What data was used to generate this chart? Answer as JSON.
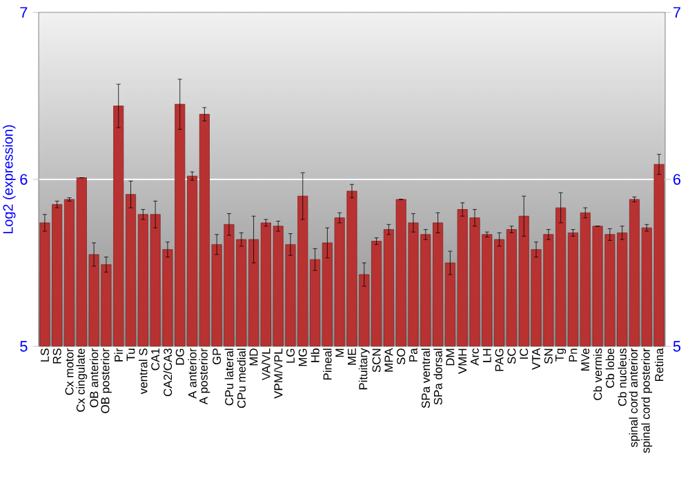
{
  "chart_data": {
    "type": "bar",
    "ylabel": "Log2 (expression)",
    "categories": [
      "LS",
      "RS",
      "Cx motor",
      "Cx cingulate",
      "OB anterior",
      "OB posterior",
      "Pir",
      "Tu",
      "ventral S",
      "CA1",
      "CA2/CA3",
      "DG",
      "A anterior",
      "A posterior",
      "GP",
      "CPu lateral",
      "CPu medial",
      "MD",
      "VA/VL",
      "VPM/VPL",
      "LG",
      "MG",
      "Hb",
      "Pineal",
      "M",
      "ME",
      "Pituitary",
      "SCN",
      "MPA",
      "SO",
      "Pa",
      "SPa ventral",
      "SPa dorsal",
      "DM",
      "VMH",
      "Arc",
      "LH",
      "PAG",
      "SC",
      "IC",
      "VTA",
      "SN",
      "Tg",
      "Pn",
      "MVe",
      "Cb vermis",
      "Cb lobe",
      "Cb nucleus",
      "spinal cord anterior",
      "spinal cord posterior",
      "Retina"
    ],
    "values": [
      5.74,
      5.85,
      5.88,
      6.01,
      5.55,
      5.49,
      6.44,
      5.91,
      5.79,
      5.79,
      5.58,
      6.45,
      6.02,
      6.39,
      5.61,
      5.73,
      5.64,
      5.64,
      5.74,
      5.72,
      5.61,
      5.9,
      5.52,
      5.62,
      5.77,
      5.93,
      5.43,
      5.63,
      5.7,
      5.88,
      5.74,
      5.67,
      5.74,
      5.5,
      5.82,
      5.77,
      5.67,
      5.64,
      5.7,
      5.78,
      5.58,
      5.67,
      5.83,
      5.68,
      5.8,
      5.72,
      5.67,
      5.68,
      5.88,
      5.71,
      6.09
    ],
    "errors": [
      0.05,
      0.02,
      0.01,
      null,
      0.07,
      0.045,
      0.13,
      0.08,
      0.03,
      0.08,
      0.045,
      0.15,
      0.025,
      0.04,
      0.06,
      0.065,
      0.04,
      0.14,
      0.02,
      0.03,
      0.065,
      0.14,
      0.065,
      0.09,
      0.03,
      0.04,
      0.07,
      0.02,
      0.03,
      null,
      0.055,
      0.03,
      0.06,
      0.07,
      0.04,
      0.05,
      0.015,
      0.04,
      0.02,
      0.12,
      0.045,
      0.03,
      0.09,
      0.02,
      0.03,
      null,
      0.035,
      0.04,
      0.015,
      0.02,
      0.06
    ],
    "color": "#b83232",
    "ylim": [
      5,
      7
    ],
    "yticks": [
      5,
      6,
      7
    ],
    "y2lim": [
      5,
      7
    ],
    "y2ticks": [
      5,
      6,
      7
    ],
    "grid": "y"
  }
}
